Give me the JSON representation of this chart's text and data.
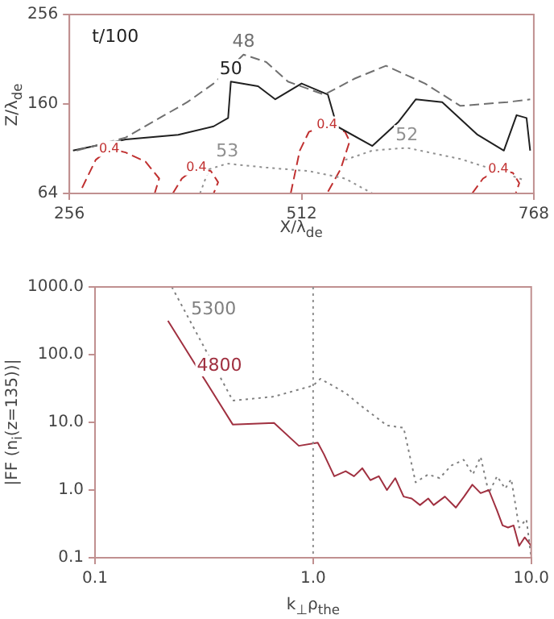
{
  "chart_data": [
    {
      "type": "line",
      "xlabel": "X/λ$_{de}$",
      "ylabel": "Z/λ$_{de}$",
      "xlim": [
        256,
        768
      ],
      "ylim": [
        64,
        256
      ],
      "xticks": [
        256,
        512,
        768
      ],
      "yticks": [
        64,
        160,
        256
      ],
      "annotations": [
        "t/100"
      ],
      "series": [
        {
          "name": "48",
          "color": "#707070",
          "line_style": "dashed",
          "x": [
            264,
            318,
            386,
            415,
            448,
            473,
            497,
            537,
            570,
            605,
            648,
            687,
            739,
            764
          ],
          "values": [
            110,
            124,
            162,
            182,
            213,
            205,
            184,
            170,
            187,
            201,
            182,
            158,
            162,
            165
          ]
        },
        {
          "name": "50",
          "color": "#202020",
          "line_style": "solid",
          "x": [
            260,
            318,
            376,
            415,
            431,
            434,
            464,
            483,
            512,
            541,
            551,
            590,
            619,
            638,
            667,
            706,
            735,
            749,
            760,
            764
          ],
          "values": [
            110,
            122,
            127,
            136,
            145,
            184,
            179,
            165,
            182,
            170,
            136,
            115,
            141,
            165,
            162,
            127,
            110,
            148,
            145,
            110
          ]
        },
        {
          "name": "52",
          "color": "#909090",
          "line_style": "dotted",
          "x": [
            560,
            590,
            628,
            687,
            726,
            755
          ],
          "values": [
            100,
            110,
            113,
            101,
            89,
            79
          ]
        },
        {
          "name": "53",
          "color": "#909090",
          "line_style": "dotted",
          "x": [
            400,
            410,
            430,
            470,
            520,
            560,
            590
          ],
          "values": [
            64,
            90,
            96,
            92,
            88,
            80,
            64
          ]
        },
        {
          "name": "0.4",
          "color": "#c03030",
          "line_style": "dashed",
          "x": [
            270,
            285,
            300,
            318,
            340,
            355,
            350
          ],
          "values": [
            70,
            100,
            112,
            108,
            98,
            80,
            64
          ]
        },
        {
          "name": "0.4",
          "color": "#c03030",
          "line_style": "dashed",
          "x": [
            370,
            380,
            396,
            412,
            420,
            415
          ],
          "values": [
            64,
            80,
            92,
            88,
            76,
            64
          ]
        },
        {
          "name": "0.4",
          "color": "#c03030",
          "line_style": "dashed",
          "x": [
            500,
            510,
            520,
            540,
            560,
            565,
            555,
            540
          ],
          "values": [
            64,
            110,
            130,
            138,
            130,
            120,
            90,
            64
          ]
        },
        {
          "name": "0.4",
          "color": "#c03030",
          "line_style": "dashed",
          "x": [
            700,
            712,
            729,
            745,
            752,
            748
          ],
          "values": [
            64,
            80,
            90,
            86,
            75,
            64
          ]
        }
      ]
    },
    {
      "type": "line",
      "xlabel": "k$_{⊥}$ρ$_{the}$",
      "ylabel": "|FF (n$_{i}$(z=135))|",
      "log": "xy",
      "xlim": [
        0.1,
        10
      ],
      "ylim": [
        0.1,
        1000
      ],
      "xticks": [
        {
          "value": 0.1,
          "label": "0.1"
        },
        {
          "value": 1,
          "label": "1.0"
        },
        {
          "value": 10,
          "label": "10.0"
        }
      ],
      "yticks": [
        {
          "value": 0.1,
          "label": "0.1"
        },
        {
          "value": 1,
          "label": "1.0"
        },
        {
          "value": 10,
          "label": "10.0"
        },
        {
          "value": 100,
          "label": "100.0"
        },
        {
          "value": 1000,
          "label": "1000.0"
        }
      ],
      "ref_lines": [
        {
          "axis": "x",
          "value": 1,
          "color": "#909090",
          "line_style": "dotted"
        }
      ],
      "series": [
        {
          "name": "4800",
          "color": "#a03040",
          "line_style": "solid",
          "x": [
            0.216,
            0.428,
            0.662,
            0.86,
            1.05,
            1.12,
            1.25,
            1.41,
            1.54,
            1.68,
            1.83,
            2.0,
            2.18,
            2.38,
            2.6,
            2.83,
            3.09,
            3.37,
            3.57,
            4.02,
            4.51,
            4.92,
            5.37,
            5.86,
            6.39,
            6.97,
            7.39,
            7.83,
            8.3,
            8.8,
            9.33,
            10
          ],
          "values": [
            316,
            9.3,
            9.8,
            4.5,
            5,
            3.4,
            1.6,
            1.9,
            1.6,
            2.1,
            1.4,
            1.6,
            1,
            1.5,
            0.8,
            0.75,
            0.6,
            0.75,
            0.6,
            0.8,
            0.55,
            0.8,
            1.2,
            0.9,
            1,
            0.5,
            0.3,
            0.28,
            0.3,
            0.15,
            0.2,
            0.15
          ]
        },
        {
          "name": "5300",
          "color": "#808080",
          "line_style": "dotted",
          "x": [
            0.225,
            0.428,
            0.662,
            1.0,
            1.08,
            1.41,
            1.68,
            2.18,
            2.6,
            2.95,
            3.37,
            3.8,
            4.3,
            4.9,
            5.4,
            5.86,
            6.39,
            6.97,
            7.6,
            8.1,
            8.8,
            9.5,
            10
          ],
          "values": [
            1000,
            21,
            24,
            35,
            44,
            27,
            17,
            9,
            8.3,
            1.3,
            1.7,
            1.5,
            2.3,
            2.8,
            1.7,
            3.1,
            0.9,
            1.6,
            1.05,
            1.45,
            0.28,
            0.37,
            0.1
          ]
        }
      ]
    }
  ]
}
